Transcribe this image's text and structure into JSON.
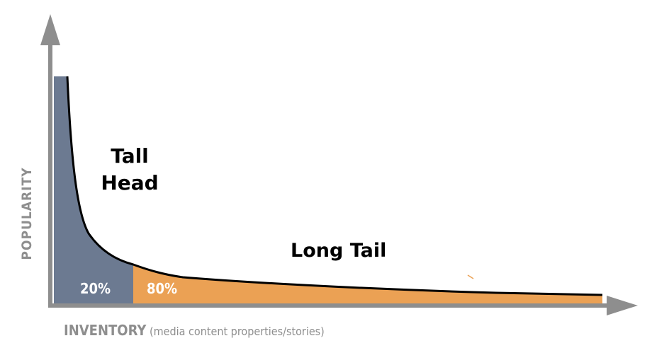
{
  "labels": {
    "head": [
      "Tall",
      "Head"
    ],
    "tail": "Long Tail",
    "head_percent": "20%",
    "tail_percent": "80%"
  },
  "axes": {
    "y_title": "POPULARITY",
    "x_title": "INVENTORY",
    "x_subtitle": "(media content properties/stories)"
  },
  "colors": {
    "head_fill": "#6c7a91",
    "tail_fill": "#eba154",
    "axis": "#8e8e8e",
    "curve": "#000000"
  }
}
